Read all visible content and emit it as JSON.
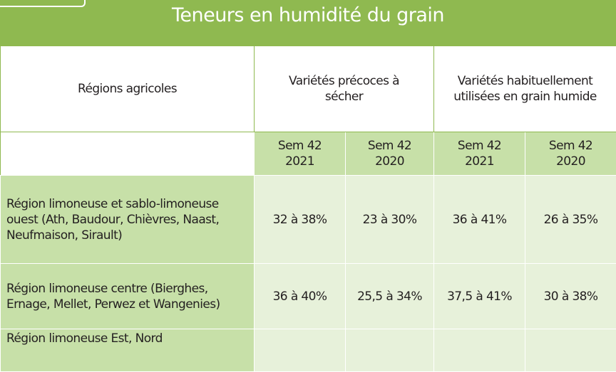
{
  "title": "Teneurs en humidité du grain",
  "header": {
    "region_col": "Régions agricoles",
    "group1": "Variétés précoces à sécher",
    "group2": "Variétés habituellement utilisées en grain humide"
  },
  "subheaders": [
    "Sem 42\n2021",
    "Sem 42\n2020",
    "Sem 42\n2021",
    "Sem 42\n2020"
  ],
  "rows": [
    {
      "region": "Région limoneuse et sablo-limoneuse ouest (Ath, Baudour, Chièvres, Naast, Neufmaison, Sirault)",
      "values": [
        "32 à 38%",
        "23 à 30%",
        "36 à 41%",
        "26 à 35%"
      ]
    },
    {
      "region": "Région limoneuse centre (Bierghes, Ernage, Mellet, Perwez et Wangenies)",
      "values": [
        "36 à 40%",
        "25,5 à 34%",
        "37,5 à 41%",
        "30 à 38%"
      ]
    },
    {
      "region": "Région limoneuse Est, Nord",
      "values": [
        "",
        "",
        "",
        ""
      ]
    }
  ],
  "colors": {
    "accent_green": "#8fb950",
    "light_green": "#c7e0a8",
    "pale_green": "#e7f1da"
  }
}
